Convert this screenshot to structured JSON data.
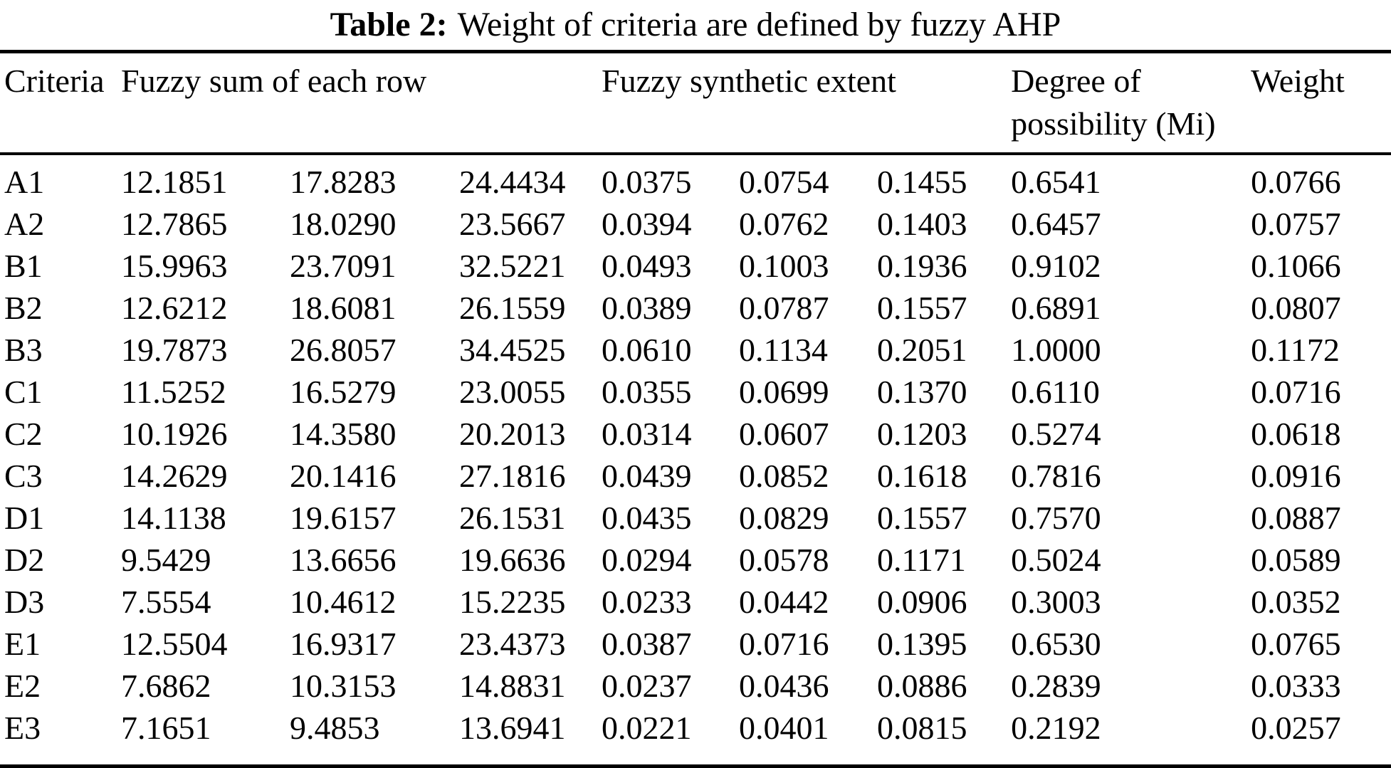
{
  "table": {
    "title_label": "Table 2:",
    "title_text": "Weight of criteria are defined by fuzzy AHP",
    "headers": {
      "criteria": "Criteria",
      "fuzzy_sum": "Fuzzy sum of each row",
      "fuzzy_synthetic": "Fuzzy synthetic extent",
      "degree": "Degree of possibility (Mi)",
      "weight": "Weight"
    }
  },
  "chart_data": {
    "type": "table",
    "title": "Table 2: Weight of criteria are defined by fuzzy AHP",
    "column_groups": [
      {
        "label": "Criteria",
        "span": 1
      },
      {
        "label": "Fuzzy sum of each row",
        "span": 3
      },
      {
        "label": "Fuzzy synthetic extent",
        "span": 3
      },
      {
        "label": "Degree of possibility (Mi)",
        "span": 1
      },
      {
        "label": "Weight",
        "span": 1
      }
    ],
    "rows": [
      [
        "A1",
        "12.1851",
        "17.8283",
        "24.4434",
        "0.0375",
        "0.0754",
        "0.1455",
        "0.6541",
        "0.0766"
      ],
      [
        "A2",
        "12.7865",
        "18.0290",
        "23.5667",
        "0.0394",
        "0.0762",
        "0.1403",
        "0.6457",
        "0.0757"
      ],
      [
        "B1",
        "15.9963",
        "23.7091",
        "32.5221",
        "0.0493",
        "0.1003",
        "0.1936",
        "0.9102",
        "0.1066"
      ],
      [
        "B2",
        "12.6212",
        "18.6081",
        "26.1559",
        "0.0389",
        "0.0787",
        "0.1557",
        "0.6891",
        "0.0807"
      ],
      [
        "B3",
        "19.7873",
        "26.8057",
        "34.4525",
        "0.0610",
        "0.1134",
        "0.2051",
        "1.0000",
        "0.1172"
      ],
      [
        "C1",
        "11.5252",
        "16.5279",
        "23.0055",
        "0.0355",
        "0.0699",
        "0.1370",
        "0.6110",
        "0.0716"
      ],
      [
        "C2",
        "10.1926",
        "14.3580",
        "20.2013",
        "0.0314",
        "0.0607",
        "0.1203",
        "0.5274",
        "0.0618"
      ],
      [
        "C3",
        "14.2629",
        "20.1416",
        "27.1816",
        "0.0439",
        "0.0852",
        "0.1618",
        "0.7816",
        "0.0916"
      ],
      [
        "D1",
        "14.1138",
        "19.6157",
        "26.1531",
        "0.0435",
        "0.0829",
        "0.1557",
        "0.7570",
        "0.0887"
      ],
      [
        "D2",
        "9.5429",
        "13.6656",
        "19.6636",
        "0.0294",
        "0.0578",
        "0.1171",
        "0.5024",
        "0.0589"
      ],
      [
        "D3",
        "7.5554",
        "10.4612",
        "15.2235",
        "0.0233",
        "0.0442",
        "0.0906",
        "0.3003",
        "0.0352"
      ],
      [
        "E1",
        "12.5504",
        "16.9317",
        "23.4373",
        "0.0387",
        "0.0716",
        "0.1395",
        "0.6530",
        "0.0765"
      ],
      [
        "E2",
        "7.6862",
        "10.3153",
        "14.8831",
        "0.0237",
        "0.0436",
        "0.0886",
        "0.2839",
        "0.0333"
      ],
      [
        "E3",
        "7.1651",
        "9.4853",
        "13.6941",
        "0.0221",
        "0.0401",
        "0.0815",
        "0.2192",
        "0.0257"
      ]
    ]
  }
}
